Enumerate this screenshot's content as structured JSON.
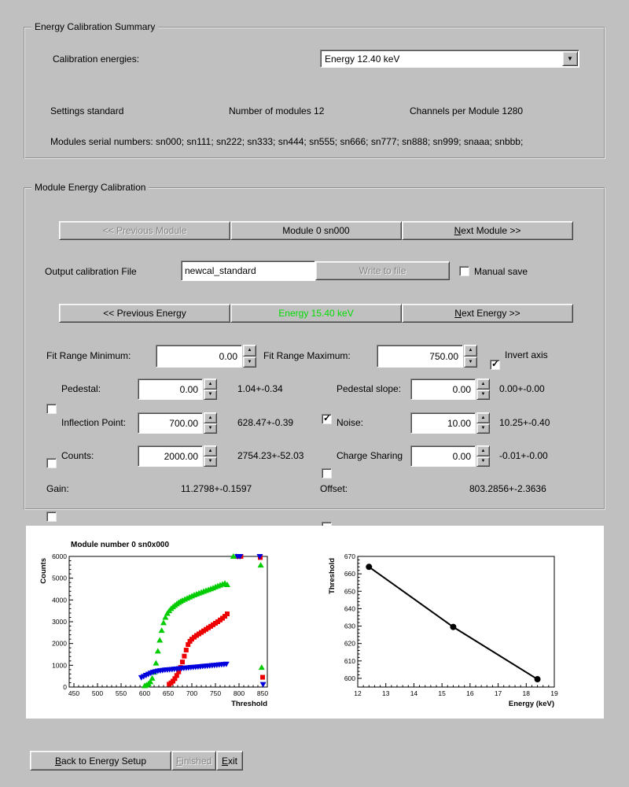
{
  "icons": {
    "spin_up": "▲",
    "spin_down": "▼",
    "dropdown": "▼"
  },
  "colors": {
    "background": "#c0c0c0",
    "energy_green": "#00dd00",
    "disabled_text": "#848484",
    "series_green": "#00cc00",
    "series_red": "#ee0000",
    "series_blue": "#0000dd",
    "fit_line_black": "#000000"
  },
  "summary": {
    "title": "Energy Calibration Summary",
    "calibration_energies_label": "Calibration energies:",
    "energy_select_value": "Energy 12.40 keV",
    "settings_text": "Settings standard",
    "modules_text": "Number of modules 12",
    "channels_text": "Channels per Module 1280",
    "serials_text": "Modules serial numbers: sn000; sn111; sn222; sn333; sn444; sn555; sn666; sn777; sn888; sn999; snaaa; snbbb;"
  },
  "module": {
    "title": "Module Energy Calibration",
    "prev_module_label": "<< Previous Module",
    "prev_module_disabled": true,
    "module_label": "Module 0 sn000",
    "next_module_label": "Next Module >>",
    "output_file_label": "Output calibration File",
    "output_file_value": "newcal_standard",
    "write_to_file_label": "Write to file",
    "write_disabled": true,
    "manual_save_label": "Manual save",
    "manual_save_checked": false,
    "prev_energy_label": "<< Previous Energy",
    "current_energy_label": "Energy 15.40 keV",
    "next_energy_label": "Next Energy >>",
    "fit_min_label": "Fit Range Minimum:",
    "fit_min_value": "0.00",
    "fit_max_label": "Fit Range Maximum:",
    "fit_max_value": "750.00",
    "invert_axis_label": "Invert axis",
    "invert_axis_checked": true,
    "params": {
      "pedestal": {
        "label": "Pedestal:",
        "checked": false,
        "value": "0.00",
        "result": "1.04+-0.34"
      },
      "pedestal_slope": {
        "label": "Pedestal slope:",
        "checked": true,
        "value": "0.00",
        "result": "0.00+-0.00"
      },
      "inflection": {
        "label": "Inflection Point:",
        "checked": false,
        "value": "700.00",
        "result": "628.47+-0.39"
      },
      "noise": {
        "label": "Noise:",
        "checked": false,
        "value": "10.00",
        "result": "10.25+-0.40"
      },
      "counts": {
        "label": "Counts:",
        "checked": false,
        "value": "2000.00",
        "result": "2754.23+-52.03"
      },
      "charge_sharing": {
        "label": "Charge Sharing",
        "checked": false,
        "value": "0.00",
        "result": "-0.01+-0.00"
      }
    },
    "gain_label": "Gain:",
    "gain_value": "11.2798+-0.1597",
    "offset_label": "Offset:",
    "offset_value": "803.2856+-2.3636"
  },
  "footer": {
    "back_label": "Back to Energy Setup",
    "finished_label": "Finished",
    "finished_disabled": true,
    "exit_label": "Exit"
  },
  "chart_data": [
    {
      "type": "scatter",
      "title": "Module number 0 sn0x000",
      "xlabel": "Threshold",
      "ylabel": "Counts",
      "xlim": [
        440,
        860
      ],
      "ylim": [
        0,
        6000
      ],
      "xticks": [
        450,
        500,
        550,
        600,
        650,
        700,
        750,
        800,
        850
      ],
      "yticks": [
        0,
        1000,
        2000,
        3000,
        4000,
        5000,
        6000
      ],
      "grid": false,
      "legend": "none",
      "series": [
        {
          "name": "trimbits-scan-green",
          "marker": "triangle-up",
          "color": "#00cc00",
          "points": [
            [
              600,
              60
            ],
            [
              604,
              95
            ],
            [
              608,
              150
            ],
            [
              612,
              240
            ],
            [
              616,
              400
            ],
            [
              620,
              680
            ],
            [
              624,
              1100
            ],
            [
              628,
              1650
            ],
            [
              632,
              2150
            ],
            [
              636,
              2600
            ],
            [
              640,
              2950
            ],
            [
              644,
              3200
            ],
            [
              648,
              3380
            ],
            [
              652,
              3500
            ],
            [
              656,
              3600
            ],
            [
              660,
              3680
            ],
            [
              664,
              3750
            ],
            [
              668,
              3820
            ],
            [
              672,
              3880
            ],
            [
              676,
              3930
            ],
            [
              680,
              3980
            ],
            [
              685,
              4030
            ],
            [
              690,
              4080
            ],
            [
              695,
              4130
            ],
            [
              700,
              4180
            ],
            [
              705,
              4230
            ],
            [
              710,
              4270
            ],
            [
              715,
              4310
            ],
            [
              720,
              4350
            ],
            [
              725,
              4390
            ],
            [
              730,
              4430
            ],
            [
              735,
              4470
            ],
            [
              740,
              4510
            ],
            [
              745,
              4550
            ],
            [
              750,
              4600
            ],
            [
              755,
              4640
            ],
            [
              760,
              4680
            ],
            [
              765,
              4720
            ],
            [
              770,
              4760
            ],
            [
              775,
              4700
            ],
            [
              788,
              6000
            ],
            [
              794,
              6000
            ],
            [
              846,
              5600
            ],
            [
              848,
              900
            ]
          ]
        },
        {
          "name": "trimbits-scan-red",
          "marker": "square",
          "color": "#ee0000",
          "points": [
            [
              652,
              130
            ],
            [
              656,
              190
            ],
            [
              660,
              270
            ],
            [
              664,
              390
            ],
            [
              668,
              530
            ],
            [
              672,
              700
            ],
            [
              676,
              900
            ],
            [
              680,
              1150
            ],
            [
              684,
              1420
            ],
            [
              688,
              1700
            ],
            [
              692,
              1950
            ],
            [
              696,
              2100
            ],
            [
              700,
              2200
            ],
            [
              705,
              2290
            ],
            [
              710,
              2370
            ],
            [
              715,
              2440
            ],
            [
              720,
              2510
            ],
            [
              725,
              2580
            ],
            [
              730,
              2650
            ],
            [
              735,
              2720
            ],
            [
              740,
              2790
            ],
            [
              745,
              2860
            ],
            [
              750,
              2930
            ],
            [
              755,
              3000
            ],
            [
              760,
              3080
            ],
            [
              765,
              3160
            ],
            [
              770,
              3250
            ],
            [
              775,
              3360
            ],
            [
              799,
              6000
            ],
            [
              804,
              6000
            ],
            [
              845,
              5950
            ],
            [
              850,
              450
            ]
          ]
        },
        {
          "name": "trimbits-scan-blue",
          "marker": "triangle-down",
          "color": "#0000dd",
          "points": [
            [
              593,
              440
            ],
            [
              598,
              490
            ],
            [
              603,
              540
            ],
            [
              608,
              590
            ],
            [
              613,
              640
            ],
            [
              618,
              680
            ],
            [
              623,
              710
            ],
            [
              628,
              735
            ],
            [
              633,
              755
            ],
            [
              638,
              770
            ],
            [
              643,
              785
            ],
            [
              648,
              795
            ],
            [
              653,
              805
            ],
            [
              658,
              815
            ],
            [
              663,
              825
            ],
            [
              668,
              838
            ],
            [
              673,
              850
            ],
            [
              678,
              860
            ],
            [
              683,
              872
            ],
            [
              688,
              882
            ],
            [
              693,
              892
            ],
            [
              698,
              902
            ],
            [
              703,
              912
            ],
            [
              708,
              922
            ],
            [
              713,
              932
            ],
            [
              718,
              942
            ],
            [
              723,
              952
            ],
            [
              728,
              962
            ],
            [
              733,
              972
            ],
            [
              738,
              982
            ],
            [
              743,
              992
            ],
            [
              748,
              1002
            ],
            [
              753,
              1012
            ],
            [
              758,
              1025
            ],
            [
              763,
              1035
            ],
            [
              768,
              1045
            ],
            [
              773,
              1055
            ],
            [
              797,
              6000
            ],
            [
              802,
              6000
            ],
            [
              844,
              6000
            ],
            [
              851,
              120
            ]
          ]
        }
      ]
    },
    {
      "type": "line",
      "title": "",
      "xlabel": "Energy (keV)",
      "ylabel": "Threshold",
      "xlim": [
        12,
        19
      ],
      "ylim": [
        595,
        670
      ],
      "xticks": [
        12,
        13,
        14,
        15,
        16,
        17,
        18,
        19
      ],
      "yticks": [
        600,
        610,
        620,
        630,
        640,
        650,
        660,
        670
      ],
      "grid": false,
      "legend": "none",
      "series": [
        {
          "name": "threshold-vs-energy-fit",
          "marker": "circle",
          "color": "#000000",
          "line": true,
          "points": [
            [
              12.4,
              664
            ],
            [
              15.4,
              629.5
            ],
            [
              18.4,
              599.5
            ]
          ]
        }
      ]
    }
  ]
}
